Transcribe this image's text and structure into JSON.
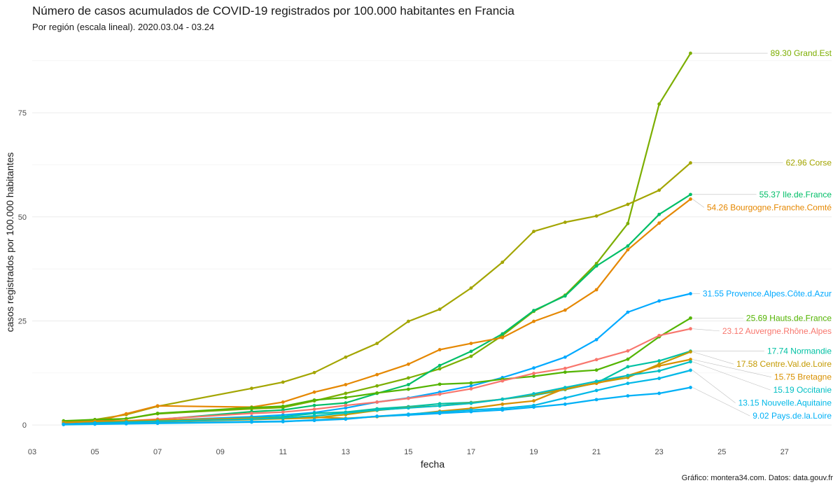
{
  "chart_data": {
    "type": "line",
    "title": "Número de casos acumulados de COVID-19 registrados por 100.000 habitantes en Francia",
    "subtitle": "Por región (escala lineal). 2020.03.04 - 03.24",
    "xlabel": "fecha",
    "ylabel": "casos registrados por 100.000 habitantes",
    "caption": "Gráfico: montera34.com. Datos: data.gouv.fr",
    "xlim": [
      3,
      28.5
    ],
    "ylim": [
      -3,
      92
    ],
    "x_ticks": [
      3,
      5,
      7,
      9,
      11,
      13,
      15,
      17,
      19,
      21,
      23,
      25,
      27
    ],
    "x_tick_labels": [
      "03",
      "05",
      "07",
      "09",
      "11",
      "13",
      "15",
      "17",
      "19",
      "21",
      "23",
      "25",
      "27"
    ],
    "y_ticks": [
      0,
      25,
      50,
      75
    ],
    "y_tick_labels": [
      "0",
      "25",
      "50",
      "75"
    ],
    "grid": true,
    "legend": "direct labels at line ends",
    "series": [
      {
        "name": "Grand.Est",
        "end_label": "89.30 Grand.Est",
        "color": "#7cae00",
        "x": [
          4,
          5,
          6,
          7,
          10,
          11,
          12,
          13,
          14,
          15,
          16,
          17,
          18,
          19,
          20,
          21,
          22,
          23,
          24
        ],
        "values": [
          0.5,
          1.0,
          1.5,
          2.7,
          3.9,
          4.2,
          5.8,
          7.6,
          9.4,
          11.3,
          13.5,
          16.5,
          21.5,
          27.3,
          31.2,
          38.8,
          48.4,
          77.1,
          89.3
        ]
      },
      {
        "name": "Corse",
        "end_label": "62.96 Corse",
        "color": "#a3a500",
        "x": [
          4,
          5,
          6,
          7,
          10,
          11,
          12,
          13,
          14,
          15,
          16,
          17,
          18,
          19,
          20,
          21,
          22,
          23,
          24
        ],
        "values": [
          0.6,
          1.3,
          2.5,
          4.5,
          8.8,
          10.3,
          12.6,
          16.3,
          19.6,
          24.9,
          27.8,
          32.9,
          39.1,
          46.5,
          48.7,
          50.2,
          53.0,
          56.4,
          62.96
        ]
      },
      {
        "name": "Ile.de.France",
        "end_label": "55.37 Ile.de.France",
        "color": "#00be67",
        "x": [
          4,
          5,
          6,
          7,
          10,
          11,
          12,
          13,
          14,
          15,
          16,
          17,
          18,
          19,
          20,
          21,
          22,
          23,
          24
        ],
        "values": [
          0.3,
          0.6,
          0.9,
          1.3,
          3.2,
          3.6,
          4.7,
          5.3,
          7.6,
          9.7,
          14.3,
          17.7,
          21.9,
          27.5,
          31.0,
          38.2,
          43.0,
          50.6,
          55.37
        ]
      },
      {
        "name": "Bourgogne.Franche.Comté",
        "end_label": "54.26 Bourgogne.Franche.Comté",
        "color": "#e58700",
        "x": [
          4,
          5,
          6,
          7,
          10,
          11,
          12,
          13,
          14,
          15,
          16,
          17,
          18,
          19,
          20,
          21,
          22,
          23,
          24
        ],
        "values": [
          0.2,
          0.8,
          2.7,
          4.6,
          4.3,
          5.5,
          7.9,
          9.7,
          12.1,
          14.6,
          18.1,
          19.6,
          21.0,
          24.9,
          27.6,
          32.5,
          42.1,
          48.5,
          54.26
        ]
      },
      {
        "name": "Provence.Alpes.Côte.d.Azur",
        "end_label": "31.55 Provence.Alpes.Côte.d.Azur",
        "color": "#00a9ff",
        "x": [
          4,
          5,
          6,
          7,
          10,
          11,
          12,
          13,
          14,
          15,
          16,
          17,
          18,
          19,
          20,
          21,
          22,
          23,
          24
        ],
        "values": [
          0.3,
          0.5,
          0.8,
          1.1,
          2.0,
          2.4,
          3.0,
          4.1,
          5.5,
          6.5,
          7.9,
          9.4,
          11.4,
          13.7,
          16.3,
          20.5,
          27.1,
          29.8,
          31.55
        ]
      },
      {
        "name": "Hauts.de.France",
        "end_label": "25.69 Hauts.de.France",
        "color": "#53b400",
        "x": [
          4,
          5,
          6,
          7,
          10,
          11,
          12,
          13,
          14,
          15,
          16,
          17,
          18,
          19,
          20,
          21,
          22,
          23,
          24
        ],
        "values": [
          1.0,
          1.3,
          1.5,
          2.8,
          4.2,
          4.5,
          6.0,
          6.6,
          7.7,
          8.6,
          9.8,
          10.1,
          11.0,
          11.7,
          12.7,
          13.2,
          15.8,
          21.2,
          25.69
        ]
      },
      {
        "name": "Auvergne.Rhône.Alpes",
        "end_label": "23.12 Auvergne.Rhône.Alpes",
        "color": "#f8766d",
        "x": [
          4,
          5,
          6,
          7,
          10,
          11,
          12,
          13,
          14,
          15,
          16,
          17,
          18,
          19,
          20,
          21,
          22,
          23,
          24
        ],
        "values": [
          0.5,
          0.9,
          1.0,
          1.4,
          2.8,
          3.1,
          3.8,
          4.7,
          5.5,
          6.4,
          7.4,
          8.7,
          10.6,
          12.4,
          13.6,
          15.7,
          17.8,
          21.5,
          23.12
        ]
      },
      {
        "name": "Normandie",
        "end_label": "17.74 Normandie",
        "color": "#00c1a3",
        "x": [
          4,
          5,
          6,
          7,
          10,
          11,
          12,
          13,
          14,
          15,
          16,
          17,
          18,
          19,
          20,
          21,
          22,
          23,
          24
        ],
        "values": [
          0.2,
          0.4,
          0.6,
          0.9,
          1.7,
          2.0,
          2.8,
          3.1,
          3.9,
          4.4,
          5.1,
          5.4,
          6.2,
          7.1,
          8.5,
          10.1,
          14.0,
          15.4,
          17.74
        ]
      },
      {
        "name": "Centre.Val.de.Loire",
        "end_label": "17.58 Centre.Val.de.Loire",
        "color": "#c49a00",
        "x": [
          4,
          5,
          6,
          7,
          10,
          11,
          12,
          13,
          14,
          15,
          16,
          17,
          18,
          19,
          20,
          21,
          22,
          23,
          24
        ],
        "values": [
          0.2,
          0.4,
          0.6,
          0.8,
          1.3,
          1.5,
          1.7,
          2.5,
          3.5,
          4.2,
          4.6,
          5.3,
          6.2,
          7.3,
          8.6,
          10.1,
          11.4,
          14.6,
          17.58
        ]
      },
      {
        "name": "Bretagne",
        "end_label": "15.75 Bretagne",
        "color": "#d89000",
        "x": [
          4,
          5,
          6,
          7,
          10,
          11,
          12,
          13,
          14,
          15,
          16,
          17,
          18,
          19,
          20,
          21,
          22,
          23,
          24
        ],
        "values": [
          0.6,
          0.9,
          1.0,
          1.2,
          1.6,
          1.7,
          1.9,
          1.6,
          2.0,
          2.5,
          3.3,
          4.0,
          5.0,
          5.8,
          8.8,
          10.0,
          11.9,
          14.2,
          15.75
        ]
      },
      {
        "name": "Occitanie",
        "end_label": "15.19 Occitanie",
        "color": "#00bfc4",
        "x": [
          4,
          5,
          6,
          7,
          10,
          11,
          12,
          13,
          14,
          15,
          16,
          17,
          18,
          19,
          20,
          21,
          22,
          23,
          24
        ],
        "values": [
          0.2,
          0.5,
          0.7,
          0.9,
          1.4,
          1.7,
          2.2,
          2.9,
          3.6,
          4.1,
          4.6,
          5.2,
          6.2,
          7.5,
          9.0,
          10.5,
          11.9,
          13.0,
          15.19
        ]
      },
      {
        "name": "Nouvelle.Aquitaine",
        "end_label": "13.15 Nouvelle.Aquitaine",
        "color": "#00b8e7",
        "x": [
          4,
          5,
          6,
          7,
          10,
          11,
          12,
          13,
          14,
          15,
          16,
          17,
          18,
          19,
          20,
          21,
          22,
          23,
          24
        ],
        "values": [
          0.1,
          0.2,
          0.3,
          0.4,
          0.7,
          0.8,
          1.2,
          1.5,
          2.1,
          2.6,
          3.1,
          3.6,
          4.0,
          4.7,
          6.5,
          8.3,
          10.0,
          11.2,
          13.15
        ]
      },
      {
        "name": "Pays.de.la.Loire",
        "end_label": "9.02 Pays.de.la.Loire",
        "color": "#00b0f6",
        "x": [
          4,
          5,
          6,
          7,
          10,
          11,
          12,
          13,
          14,
          15,
          16,
          17,
          18,
          19,
          20,
          21,
          22,
          23,
          24
        ],
        "values": [
          0.2,
          0.3,
          0.4,
          0.5,
          0.8,
          0.9,
          1.1,
          1.4,
          2.1,
          2.4,
          2.8,
          3.2,
          3.6,
          4.3,
          5.0,
          6.1,
          7.0,
          7.6,
          9.02
        ]
      }
    ]
  }
}
